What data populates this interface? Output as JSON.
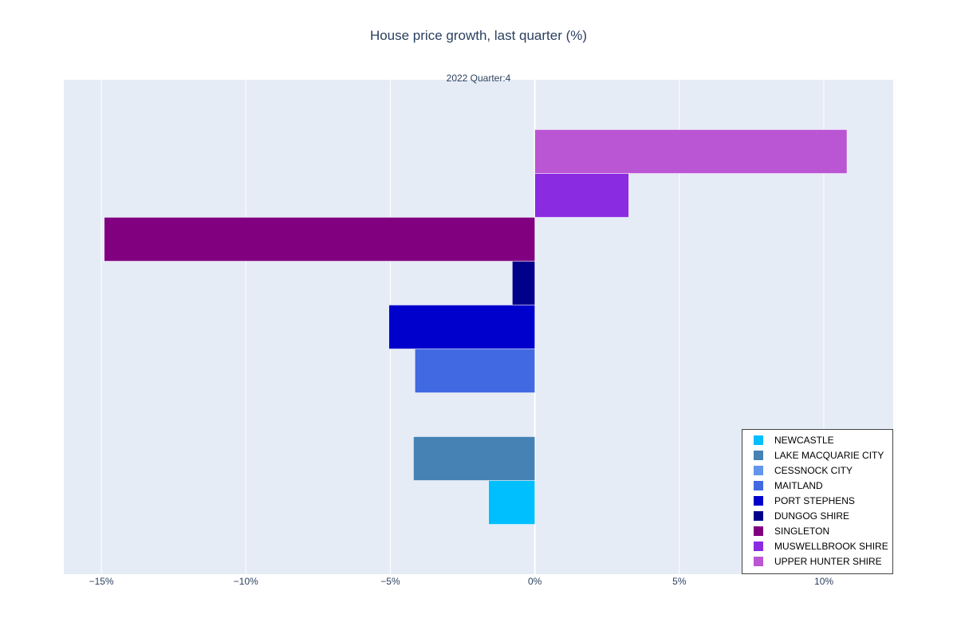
{
  "chart_data": {
    "type": "bar",
    "orientation": "horizontal",
    "title": "House price growth, last quarter (%)",
    "annotation": "2022 Quarter:4",
    "xlabel": "",
    "ylabel": "",
    "xlim": [
      -16.3,
      12.4
    ],
    "xticks": [
      -15,
      -10,
      -5,
      0,
      5,
      10
    ],
    "xtick_labels": [
      "−15%",
      "−10%",
      "−5%",
      "0%",
      "5%",
      "10%"
    ],
    "grid": true,
    "legend_position": "bottom-right",
    "series": [
      {
        "name": "NEWCASTLE",
        "value": -1.6,
        "color": "#00BFFF"
      },
      {
        "name": "LAKE MACQUARIE CITY",
        "value": -4.2,
        "color": "#4682B4"
      },
      {
        "name": "CESSNOCK CITY",
        "value": null,
        "color": "#6495ED"
      },
      {
        "name": "MAITLAND",
        "value": -4.15,
        "color": "#4169E1"
      },
      {
        "name": "PORT STEPHENS",
        "value": -5.05,
        "color": "#0000CD"
      },
      {
        "name": "DUNGOG SHIRE",
        "value": -0.78,
        "color": "#00008B"
      },
      {
        "name": "SINGLETON",
        "value": -14.9,
        "color": "#800080"
      },
      {
        "name": "MUSWELLBROOK SHIRE",
        "value": 3.25,
        "color": "#8A2BE2"
      },
      {
        "name": "UPPER HUNTER SHIRE",
        "value": 10.8,
        "color": "#BA55D3"
      }
    ]
  }
}
